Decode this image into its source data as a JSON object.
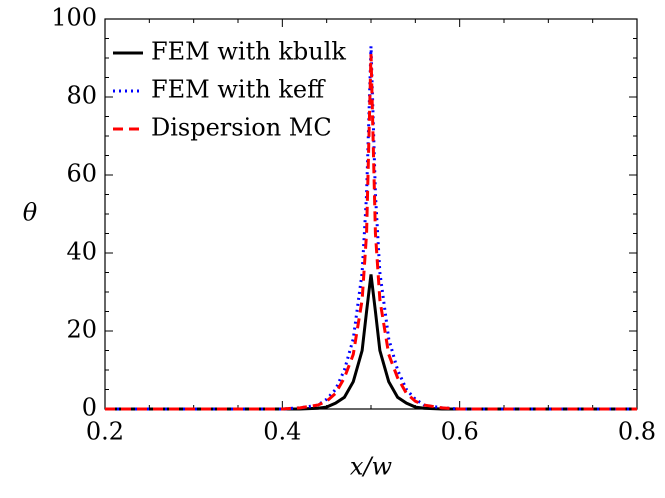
{
  "chart_data": {
    "type": "line",
    "x_label": "x/w",
    "y_label": "θ",
    "x": [
      0.2,
      0.3,
      0.4,
      0.42,
      0.44,
      0.45,
      0.46,
      0.47,
      0.48,
      0.49,
      0.495,
      0.5,
      0.505,
      0.51,
      0.52,
      0.53,
      0.54,
      0.55,
      0.56,
      0.58,
      0.6,
      0.7,
      0.8
    ],
    "series": [
      {
        "name": "FEM with kbulk",
        "color": "#000000",
        "dash": "solid",
        "values": [
          0,
          0,
          0,
          0,
          0.2,
          0.5,
          1.5,
          3,
          7,
          15,
          25,
          34.5,
          25,
          15,
          7,
          3,
          1.5,
          0.5,
          0.2,
          0,
          0,
          0,
          0
        ]
      },
      {
        "name": "FEM with keff",
        "color": "#0000ff",
        "dash": "dotted",
        "values": [
          0,
          0,
          0,
          0.3,
          1,
          2.5,
          5,
          10,
          18,
          35,
          55,
          93,
          55,
          35,
          18,
          10,
          5,
          2.5,
          1,
          0.3,
          0,
          0,
          0
        ]
      },
      {
        "name": "Dispersion MC",
        "color": "#ff0000",
        "dash": "dashed",
        "values": [
          0,
          0,
          0,
          0.3,
          1,
          2,
          4,
          8,
          14,
          28,
          45,
          91,
          45,
          28,
          14,
          8,
          4,
          2,
          1,
          0.3,
          0,
          0,
          0
        ]
      }
    ],
    "xlim": [
      0.2,
      0.8
    ],
    "xticks": [
      0.2,
      0.4,
      0.6,
      0.8
    ],
    "ylim": [
      0,
      100
    ],
    "yticks": [
      0,
      20,
      40,
      60,
      80,
      100
    ],
    "legend": "upper-left",
    "grid": false
  }
}
